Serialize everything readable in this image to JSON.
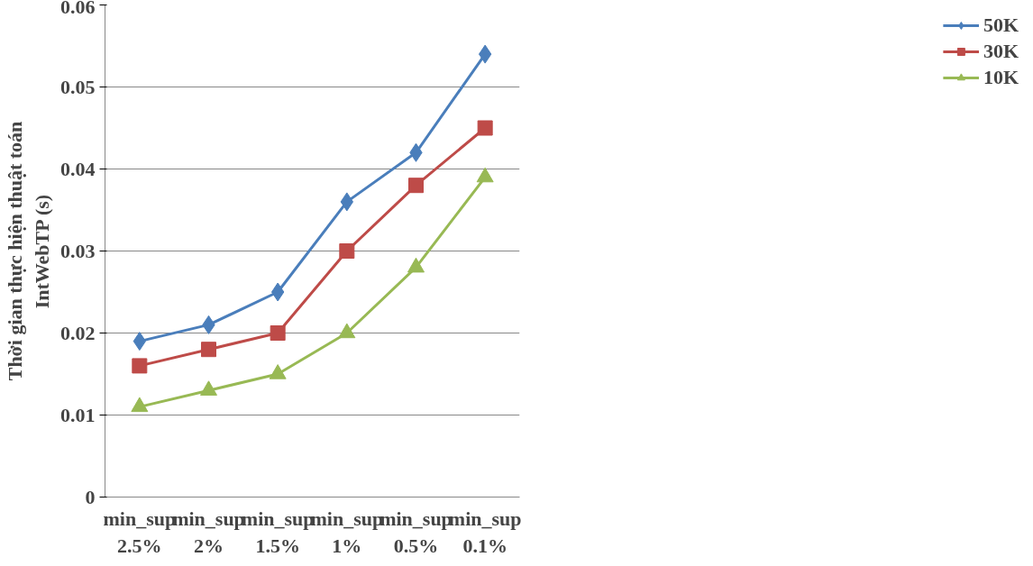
{
  "chart_data": {
    "type": "line",
    "ylabel": "Thời gian thực hiện thuật toán\nIntWebTP (s)",
    "categories": [
      "min_sup\n2.5%",
      "min_sup\n2%",
      "min_sup\n1.5%",
      "min_sup\n1%",
      "min_sup\n0.5%",
      "min_sup\n0.1%"
    ],
    "series": [
      {
        "name": "50K",
        "color": "#4a7ebb",
        "marker": "diamond",
        "values": [
          0.019,
          0.021,
          0.025,
          0.036,
          0.042,
          0.054
        ]
      },
      {
        "name": "30K",
        "color": "#be4b48",
        "marker": "square",
        "values": [
          0.016,
          0.018,
          0.02,
          0.03,
          0.038,
          0.045
        ]
      },
      {
        "name": "10K",
        "color": "#98b954",
        "marker": "triangle",
        "values": [
          0.011,
          0.013,
          0.015,
          0.02,
          0.028,
          0.039
        ]
      }
    ],
    "ylim": [
      0,
      0.06
    ],
    "yticks": [
      0,
      0.01,
      0.02,
      0.03,
      0.04,
      0.05,
      0.06
    ],
    "grid": "y",
    "legend": "right"
  }
}
